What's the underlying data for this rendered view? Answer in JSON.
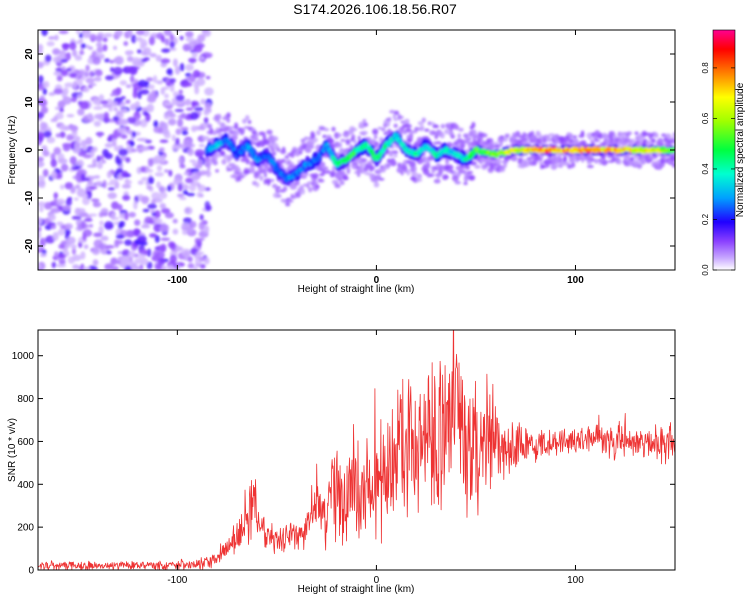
{
  "title": "S174.2026.106.18.56.R07",
  "colors": {
    "line": "#ee3333",
    "axis": "#000000",
    "background": "#ffffff"
  },
  "chart_data": [
    {
      "type": "heatmap",
      "title": "",
      "xlabel": "Height of straight line (km)",
      "ylabel": "Frequency (Hz)",
      "xlim": [
        -170,
        150
      ],
      "ylim": [
        -25,
        25
      ],
      "xticks": [
        -100,
        0,
        100
      ],
      "xtick_labels": [
        "-100",
        "0",
        "100"
      ],
      "yticks": [
        -20,
        -10,
        0,
        10,
        20
      ],
      "ytick_labels": [
        "-20",
        "-10",
        "0",
        "10",
        "20"
      ],
      "noise_region_x": [
        -170,
        -88
      ],
      "signal_ridge": {
        "x": [
          -85,
          -80,
          -75,
          -70,
          -65,
          -60,
          -55,
          -50,
          -45,
          -40,
          -35,
          -30,
          -25,
          -20,
          -15,
          -10,
          -5,
          0,
          5,
          10,
          15,
          20,
          25,
          30,
          35,
          40,
          45,
          50,
          60,
          70,
          80,
          90,
          100,
          110,
          120,
          130,
          140,
          150
        ],
        "freq": [
          0,
          1,
          2,
          -1,
          1,
          -2,
          -1,
          -4,
          -6,
          -5,
          -3,
          -2,
          1,
          -3,
          -2,
          0,
          1,
          -2,
          1,
          3,
          0,
          -1,
          1,
          -1,
          0,
          -1,
          -2,
          0,
          -1,
          0,
          0,
          0,
          0,
          0,
          0,
          0,
          0,
          0
        ],
        "amplitude": [
          0.3,
          0.35,
          0.3,
          0.25,
          0.3,
          0.3,
          0.25,
          0.3,
          0.3,
          0.3,
          0.3,
          0.25,
          0.3,
          0.45,
          0.5,
          0.5,
          0.45,
          0.5,
          0.45,
          0.4,
          0.4,
          0.45,
          0.4,
          0.45,
          0.4,
          0.4,
          0.45,
          0.55,
          0.6,
          0.7,
          0.85,
          0.85,
          0.85,
          0.8,
          0.8,
          0.75,
          0.7,
          0.6
        ]
      },
      "colorbar": {
        "label": "Normalized spectral amplitude",
        "range": [
          0,
          0.95
        ],
        "ticks": [
          0,
          0.2,
          0.4,
          0.6,
          0.8
        ],
        "tick_labels": [
          "0.0",
          "0.2",
          "0.4",
          "0.6",
          "0.8"
        ],
        "colormap": [
          "#ffffff",
          "#b08cff",
          "#5a00e0",
          "#0000ff",
          "#00c8ff",
          "#00ff80",
          "#80ff00",
          "#ffff00",
          "#ff8000",
          "#ff0000",
          "#ff00a0"
        ]
      }
    },
    {
      "type": "line",
      "title": "",
      "xlabel": "Height of straight line (km)",
      "ylabel": "SNR (10 * v/v)",
      "xlim": [
        -170,
        150
      ],
      "ylim": [
        0,
        1120
      ],
      "xticks": [
        -100,
        0,
        100
      ],
      "xtick_labels": [
        "-100",
        "0",
        "100"
      ],
      "yticks": [
        0,
        200,
        400,
        600,
        800,
        1000
      ],
      "ytick_labels": [
        "0",
        "200",
        "400",
        "600",
        "800",
        "1000"
      ],
      "series": [
        {
          "name": "SNR",
          "x": [
            -170,
            -150,
            -130,
            -110,
            -92,
            -85,
            -80,
            -75,
            -70,
            -66,
            -62,
            -58,
            -54,
            -50,
            -46,
            -42,
            -38,
            -34,
            -30,
            -26,
            -22,
            -18,
            -14,
            -10,
            -6,
            -2,
            2,
            6,
            10,
            15,
            20,
            25,
            30,
            35,
            40,
            45,
            50,
            55,
            60,
            65,
            70,
            75,
            80,
            90,
            100,
            110,
            120,
            130,
            140,
            150
          ],
          "values": [
            20,
            20,
            20,
            20,
            20,
            35,
            60,
            110,
            150,
            220,
            320,
            220,
            160,
            130,
            140,
            160,
            170,
            200,
            340,
            200,
            420,
            350,
            340,
            380,
            380,
            360,
            410,
            480,
            540,
            640,
            570,
            560,
            620,
            700,
            760,
            560,
            560,
            620,
            640,
            580,
            590,
            600,
            570,
            600,
            610,
            615,
            590,
            600,
            590,
            580
          ],
          "spread": [
            18,
            18,
            18,
            18,
            18,
            30,
            40,
            50,
            60,
            80,
            150,
            90,
            60,
            50,
            50,
            60,
            70,
            90,
            150,
            140,
            200,
            200,
            220,
            250,
            260,
            240,
            250,
            260,
            280,
            300,
            320,
            300,
            320,
            330,
            350,
            320,
            300,
            250,
            180,
            120,
            90,
            80,
            60,
            50,
            50,
            50,
            70,
            60,
            70,
            80
          ]
        }
      ]
    }
  ]
}
